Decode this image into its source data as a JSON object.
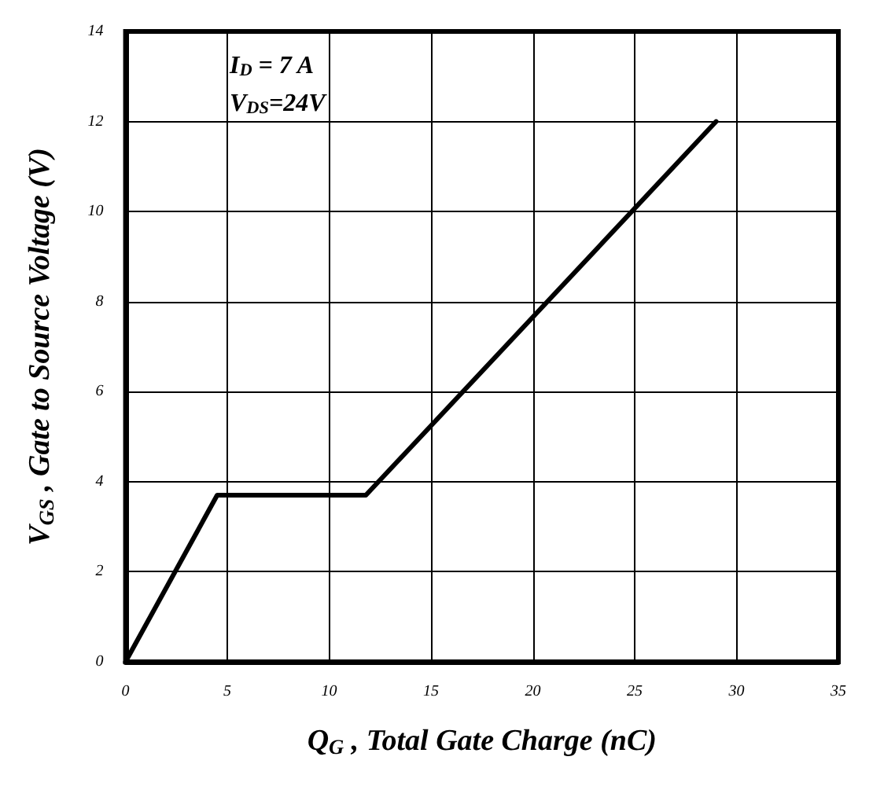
{
  "chart_data": {
    "type": "line",
    "xlabel": "Q$_{G}$ , Total Gate Charge (nC)",
    "ylabel": "V$_{GS}$ , Gate to Source Voltage (V)",
    "annotations": [
      "I$_{D}$ = 7 A",
      "V$_{DS}$=24V"
    ],
    "x": [
      0,
      4.5,
      11.8,
      29
    ],
    "series": [
      {
        "color": "#000000",
        "values": [
          0,
          3.7,
          3.7,
          12
        ]
      }
    ],
    "xlim": [
      0,
      35
    ],
    "xticks": [
      0,
      5,
      10,
      15,
      20,
      25,
      30,
      35
    ],
    "ylim": [
      0,
      14
    ],
    "yticks": [
      0,
      2,
      4,
      6,
      8,
      10,
      12,
      14
    ],
    "grid": true,
    "marker": "none",
    "line_style": "solid"
  }
}
